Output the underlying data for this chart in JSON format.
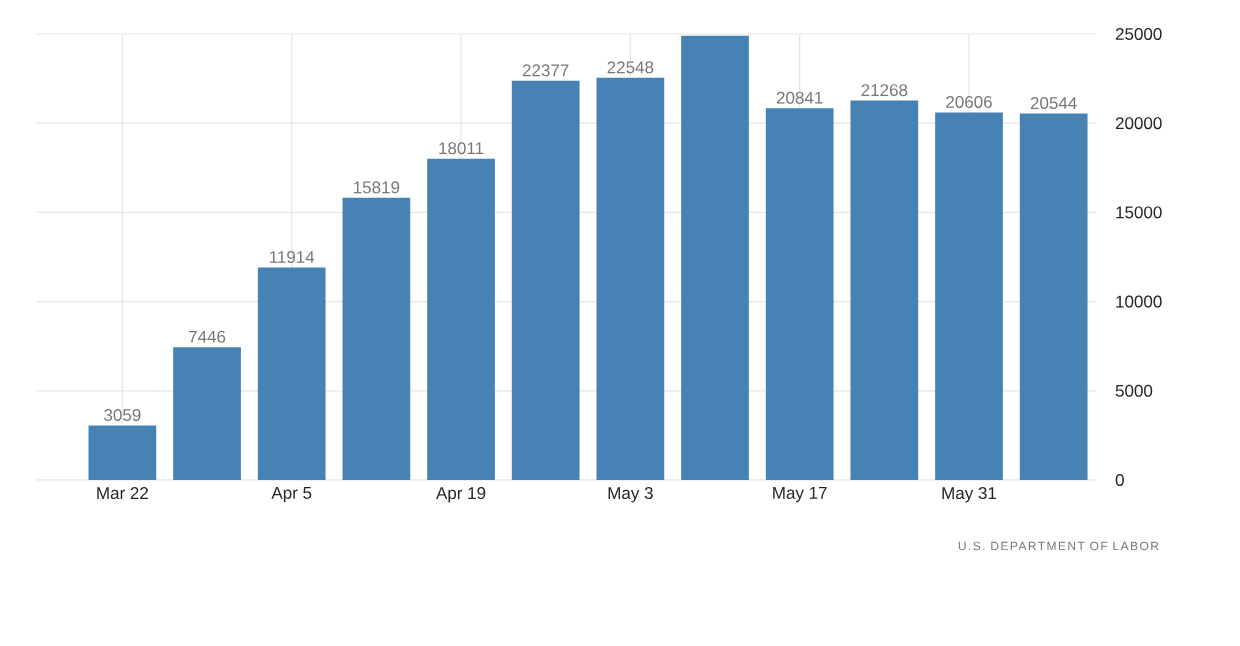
{
  "chart_data": {
    "type": "bar",
    "categories": [
      "Mar 22",
      null,
      "Apr 5",
      null,
      "Apr 19",
      null,
      "May 3",
      null,
      "May 17",
      null,
      "May 31",
      null
    ],
    "values": [
      3059,
      7446,
      11914,
      15819,
      18011,
      22377,
      22548,
      24900,
      20841,
      21268,
      20606,
      20544
    ],
    "value_labels": [
      "3059",
      "7446",
      "11914",
      "15819",
      "18011",
      "22377",
      "22548",
      null,
      "20841",
      "21268",
      "20606",
      "20544"
    ],
    "color": "#4682b4",
    "ylim": [
      0,
      25000
    ],
    "yticks": [
      0,
      5000,
      10000,
      15000,
      20000,
      25000
    ],
    "grid": true,
    "annotations": [
      "U.S. DEPARTMENT OF LABOR"
    ]
  }
}
